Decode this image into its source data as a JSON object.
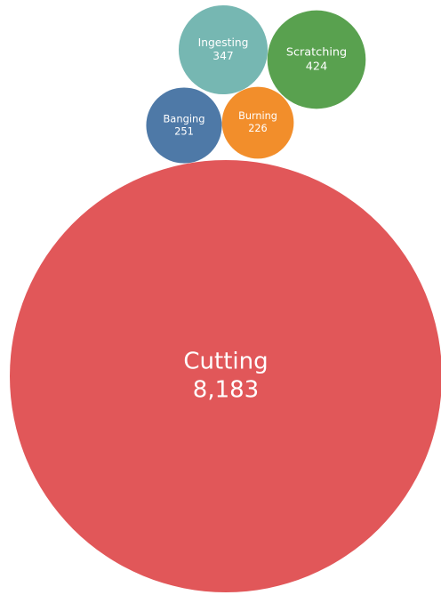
{
  "chart_data": {
    "type": "bubble",
    "title": "",
    "series": [
      {
        "name": "Cutting",
        "value": 8183,
        "value_label": "8,183",
        "color": "#e15759"
      },
      {
        "name": "Scratching",
        "value": 424,
        "value_label": "424",
        "color": "#59a14f"
      },
      {
        "name": "Ingesting",
        "value": 347,
        "value_label": "347",
        "color": "#76b7b2"
      },
      {
        "name": "Banging",
        "value": 251,
        "value_label": "251",
        "color": "#4e79a7"
      },
      {
        "name": "Burning",
        "value": 226,
        "value_label": "226",
        "color": "#f28e2b"
      }
    ]
  }
}
